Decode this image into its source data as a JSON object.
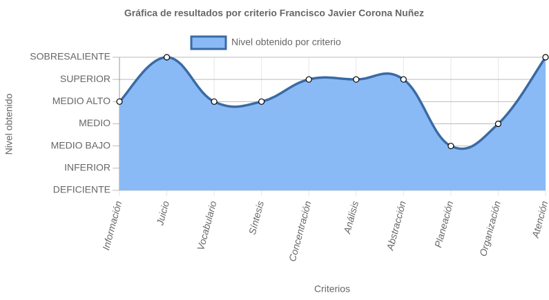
{
  "chart_data": {
    "type": "line",
    "title": "Gráfica de resultados por criterio Francisco Javier Corona Nuñez",
    "x_label": "Criterios",
    "y_label": "Nivel obtenido",
    "categories": [
      "Información",
      "Juicio",
      "Vocabulario",
      "Síntesis",
      "Concentración",
      "Análisis",
      "Abstracción",
      "Planeación",
      "Organización",
      "Atención"
    ],
    "series": [
      {
        "name": "Nivel obtenido por criterio",
        "color": "#3a6aa3",
        "fill": "#8abaf6",
        "values": [
          4,
          6,
          4,
          4,
          5,
          5,
          5,
          2,
          3,
          6
        ]
      }
    ],
    "ylim": [
      0,
      6
    ],
    "yticks": [
      {
        "value": 0,
        "label": "DEFICIENTE"
      },
      {
        "value": 1,
        "label": "INFERIOR"
      },
      {
        "value": 2,
        "label": "MEDIO BAJO"
      },
      {
        "value": 3,
        "label": "MEDIO"
      },
      {
        "value": 4,
        "label": "MEDIO ALTO"
      },
      {
        "value": 5,
        "label": "SUPERIOR"
      },
      {
        "value": 6,
        "label": "SOBRESALIENTE"
      }
    ],
    "grid": true,
    "legend": "top"
  }
}
